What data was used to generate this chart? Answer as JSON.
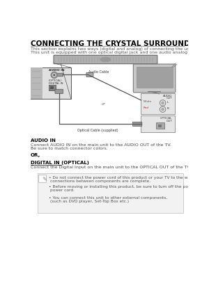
{
  "bg_color": "#ffffff",
  "title": "CONNECTING THE CRYSTAL SURROUND AIR TRACK",
  "subtitle1": "This section explains two ways (digital and analog) of connecting the unit to the TV.",
  "subtitle2": "This unit is equipped with one optical digital jack and one audio analog jack for connecting a TV.",
  "audio_cable_label": "Audio Cable",
  "optical_cable_label": "Optical Cable (supplied)",
  "or_label": "or",
  "audio_in_label": "AUDIO IN",
  "optical_digital_in_line1": "(OPTICAL)",
  "optical_digital_in_line2": "DIGITAL IN",
  "audio_out_label1": "AUDIO",
  "audio_out_label2": "OUT",
  "white_label": "White",
  "red_label": "Red",
  "optical_out_label1": "OPTICAL",
  "optical_out_label2": "OUT",
  "section1_header": "AUDIO IN",
  "section1_body1": "Connect AUDIO IN on the main unit to the AUDIO OUT of the TV.",
  "section1_body2": "Be sure to match connector colors.",
  "or_text": "OR,",
  "section2_header": "DIGITAL IN (OPTICAL)",
  "section2_body": "Connect the Digital Input on the main unit to the OPTICAL OUT of the TV.",
  "note_bullet1_line1": "Do not connect the power cord of this product or your TV to the wall outlet until all",
  "note_bullet1_line2": "connections between components are complete.",
  "note_bullet2_line1": "Before moving or installing this product, be sure to turn off the power and disconnect the",
  "note_bullet2_line2": "power cord.",
  "note_bullet3_line1": "You can connect this unit to other external components,",
  "note_bullet3_line2": "(such as DVD player, Set-Top Box etc.)",
  "title_fontsize": 7.5,
  "subtitle_fontsize": 4.5,
  "diagram_label_fontsize": 3.5,
  "section_header_fontsize": 5.0,
  "body_fontsize": 4.5,
  "note_fontsize": 4.2,
  "soundbar_color": "#b0b0b0",
  "soundbar_edge": "#666666",
  "panel_bg": "#d8d8d8",
  "panel_edge": "#555555",
  "tv_body_color": "#c8c8c8",
  "tv_screen_color": "#a0a0a0",
  "connector_box_color": "#e5e5e5",
  "connector_box_edge": "#888888",
  "cable_color": "#555555",
  "note_bg": "#f2f2f2",
  "note_edge": "#bbbbbb"
}
